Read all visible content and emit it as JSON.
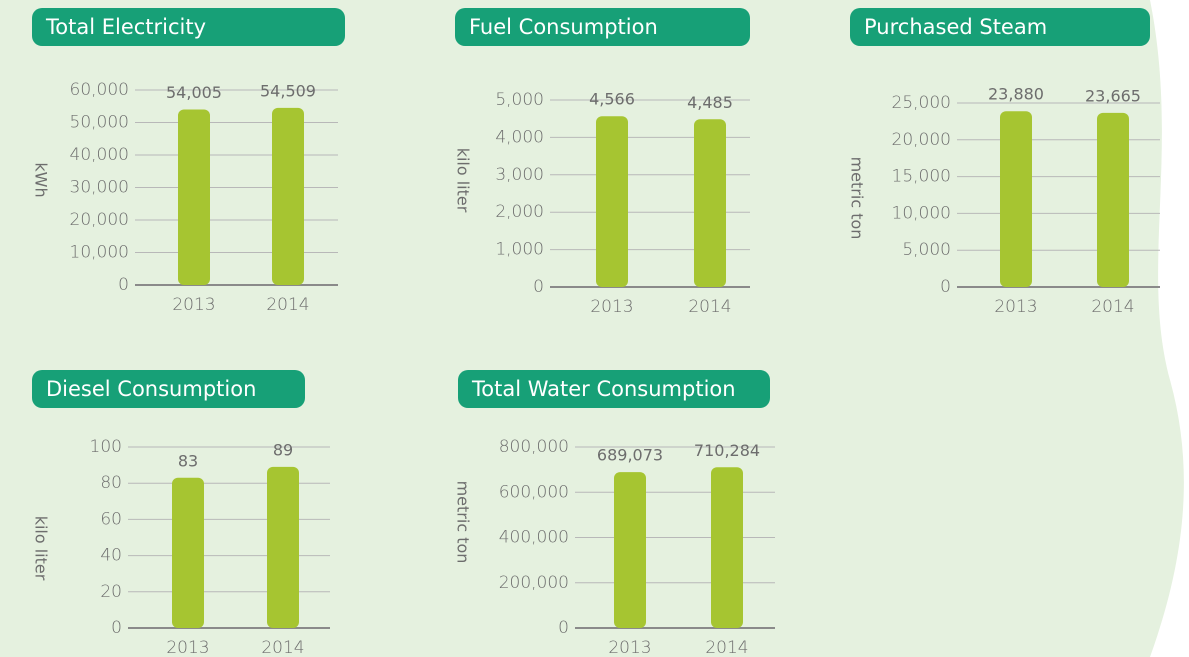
{
  "chart_data": [
    {
      "type": "bar",
      "title": "Total Electricity",
      "ylabel": "kWh",
      "categories": [
        "2013",
        "2014"
      ],
      "values": [
        54005,
        54509
      ],
      "value_labels": [
        "54,005",
        "54,509"
      ],
      "color": "#a6c531",
      "ylim": [
        0,
        60000
      ],
      "yticks": [
        0,
        {
          "value": 10000,
          "label": "10,000"
        },
        {
          "value": 20000,
          "label": "20,000"
        },
        {
          "value": 30000,
          "label": "30,000"
        },
        {
          "value": 40000,
          "label": "40,000"
        },
        {
          "value": 50000,
          "label": "50,000"
        },
        {
          "value": 60000,
          "label": "60,000"
        }
      ],
      "grid": true
    },
    {
      "type": "bar",
      "title": "Fuel Consumption",
      "ylabel": "kilo liter",
      "categories": [
        "2013",
        "2014"
      ],
      "values": [
        4566,
        4485
      ],
      "value_labels": [
        "4,566",
        "4,485"
      ],
      "color": "#a6c531",
      "ylim": [
        0,
        5000
      ],
      "yticks": [
        0,
        {
          "value": 1000,
          "label": "1,000"
        },
        {
          "value": 2000,
          "label": "2,000"
        },
        {
          "value": 3000,
          "label": "3,000"
        },
        {
          "value": 4000,
          "label": "4,000"
        },
        {
          "value": 5000,
          "label": "5,000"
        }
      ],
      "grid": true
    },
    {
      "type": "bar",
      "title": "Purchased Steam",
      "ylabel": "metric ton",
      "categories": [
        "2013",
        "2014"
      ],
      "values": [
        23880,
        23665
      ],
      "value_labels": [
        "23,880",
        "23,665"
      ],
      "color": "#a6c531",
      "ylim": [
        0,
        25000
      ],
      "yticks": [
        0,
        {
          "value": 5000,
          "label": "5,000"
        },
        {
          "value": 10000,
          "label": "10,000"
        },
        {
          "value": 15000,
          "label": "15,000"
        },
        {
          "value": 20000,
          "label": "20,000"
        },
        {
          "value": 25000,
          "label": "25,000"
        }
      ],
      "grid": true
    },
    {
      "type": "bar",
      "title": "Diesel Consumption",
      "ylabel": "kilo liter",
      "categories": [
        "2013",
        "2014"
      ],
      "values": [
        83,
        89
      ],
      "color": "#a6c531",
      "ylim": [
        0,
        100
      ],
      "yticks": [
        0,
        20,
        40,
        60,
        80,
        100
      ],
      "grid": true
    },
    {
      "type": "bar",
      "title": "Total Water Consumption",
      "ylabel": "metric ton",
      "categories": [
        "2013",
        "2014"
      ],
      "values": [
        689073,
        710284
      ],
      "value_labels": [
        "689,073",
        "710,284"
      ],
      "color": "#a6c531",
      "ylim": [
        0,
        800000
      ],
      "yticks": [
        0,
        {
          "value": 200000,
          "label": "200,000"
        },
        {
          "value": 400000,
          "label": "400,000"
        },
        {
          "value": 600000,
          "label": "600,000"
        },
        {
          "value": 800000,
          "label": "800,000"
        }
      ],
      "grid": true
    }
  ]
}
